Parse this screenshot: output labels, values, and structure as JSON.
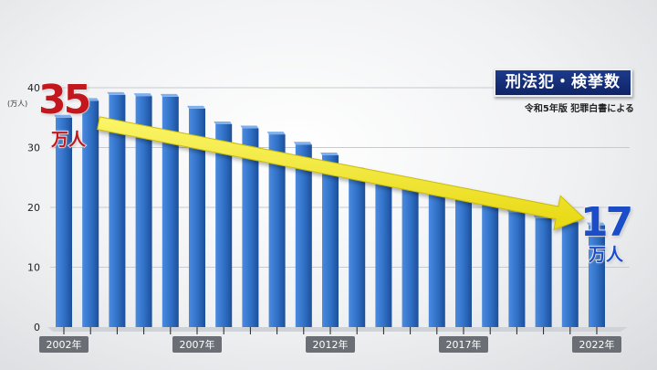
{
  "chart_data": {
    "type": "bar",
    "title": "刑法犯・検挙数",
    "source": "令和5年版 犯罪白書による",
    "unit_label": "(万人)",
    "x": [
      2002,
      2003,
      2004,
      2005,
      2006,
      2007,
      2008,
      2009,
      2010,
      2011,
      2012,
      2013,
      2014,
      2015,
      2016,
      2017,
      2018,
      2019,
      2020,
      2021,
      2022
    ],
    "values": [
      35.0,
      37.8,
      38.8,
      38.6,
      38.5,
      36.5,
      33.9,
      33.2,
      32.2,
      30.5,
      28.7,
      26.2,
      25.1,
      24.0,
      22.7,
      21.5,
      20.6,
      19.2,
      18.2,
      17.5,
      17.0
    ],
    "x_tick_labels": [
      "2002年",
      "2007年",
      "2012年",
      "2017年",
      "2022年"
    ],
    "y_ticks": [
      0,
      10,
      20,
      30,
      40
    ],
    "ylim": [
      0,
      40
    ],
    "bar_color": "#2f6fc4",
    "annotations": {
      "start_value": "35",
      "start_unit": "万人",
      "end_value": "17",
      "end_unit": "万人",
      "arrow_color": "#f2ea1c"
    }
  }
}
